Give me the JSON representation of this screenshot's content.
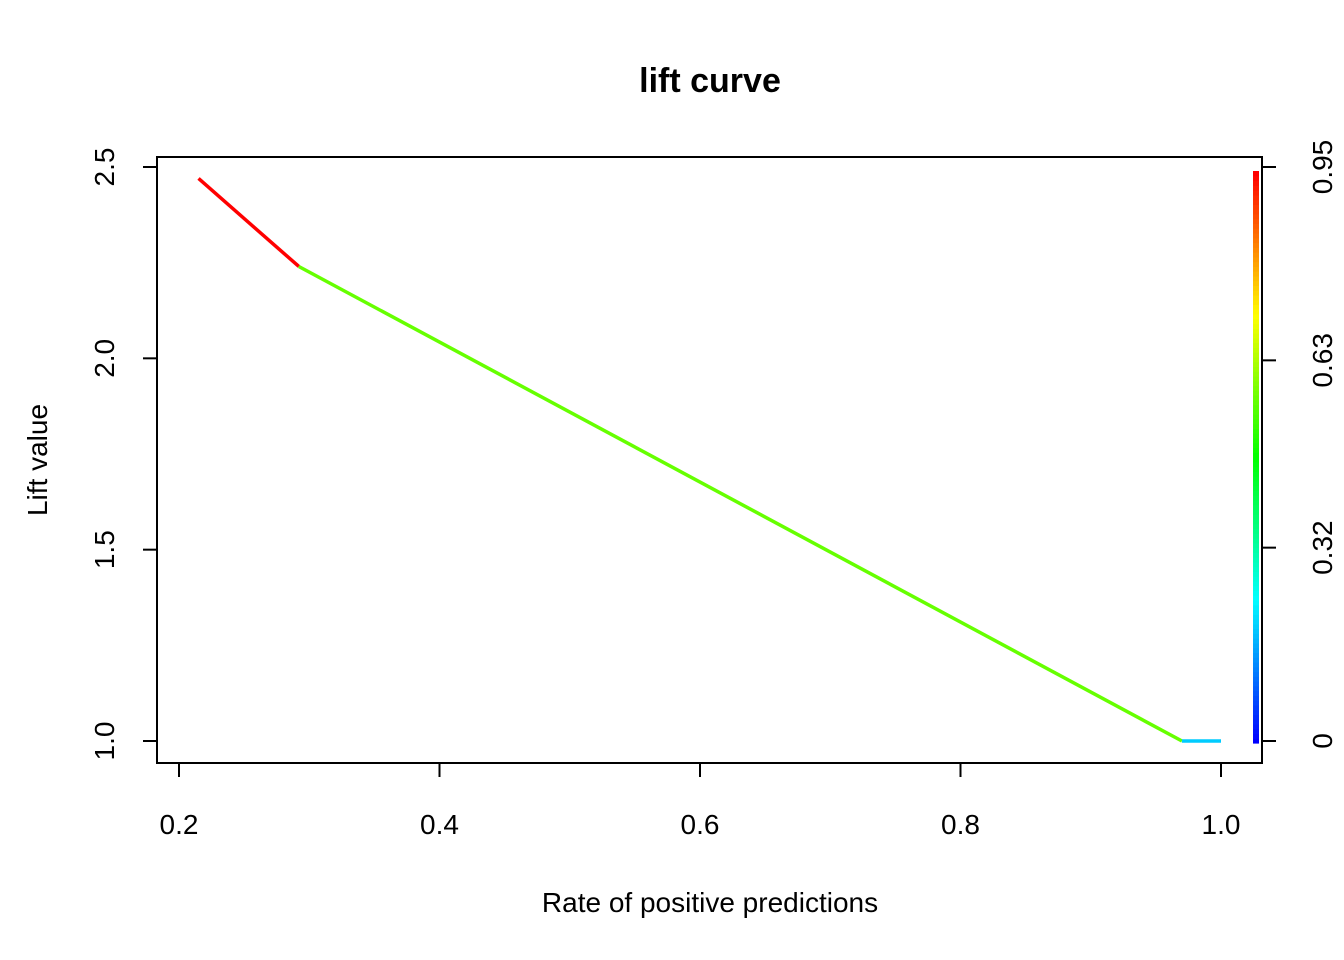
{
  "chart_data": {
    "type": "line",
    "title": "lift curve",
    "xlabel": "Rate of positive predictions",
    "ylabel": "Lift value",
    "xlim": [
      0.2,
      1.0
    ],
    "ylim": [
      1.0,
      2.5
    ],
    "x_ticks": [
      "0.2",
      "0.4",
      "0.6",
      "0.8",
      "1.0"
    ],
    "y_ticks": [
      "1.0",
      "1.5",
      "2.0",
      "2.5"
    ],
    "colorbar": {
      "ticks": [
        "0",
        "0.32",
        "0.63",
        "0.95"
      ],
      "range": [
        0,
        0.95
      ],
      "colors": [
        "#0000ff",
        "#00ffff",
        "#00ff00",
        "#ffff00",
        "#ff0000"
      ]
    },
    "grid": false,
    "segments": [
      {
        "x": [
          0.215,
          0.292
        ],
        "y": [
          2.47,
          2.24
        ],
        "color": "#ff0000"
      },
      {
        "x": [
          0.292,
          0.97
        ],
        "y": [
          2.24,
          1.0
        ],
        "color": "#66ff00"
      },
      {
        "x": [
          0.97,
          1.0
        ],
        "y": [
          1.0,
          1.0
        ],
        "color": "#00ccff"
      }
    ]
  }
}
